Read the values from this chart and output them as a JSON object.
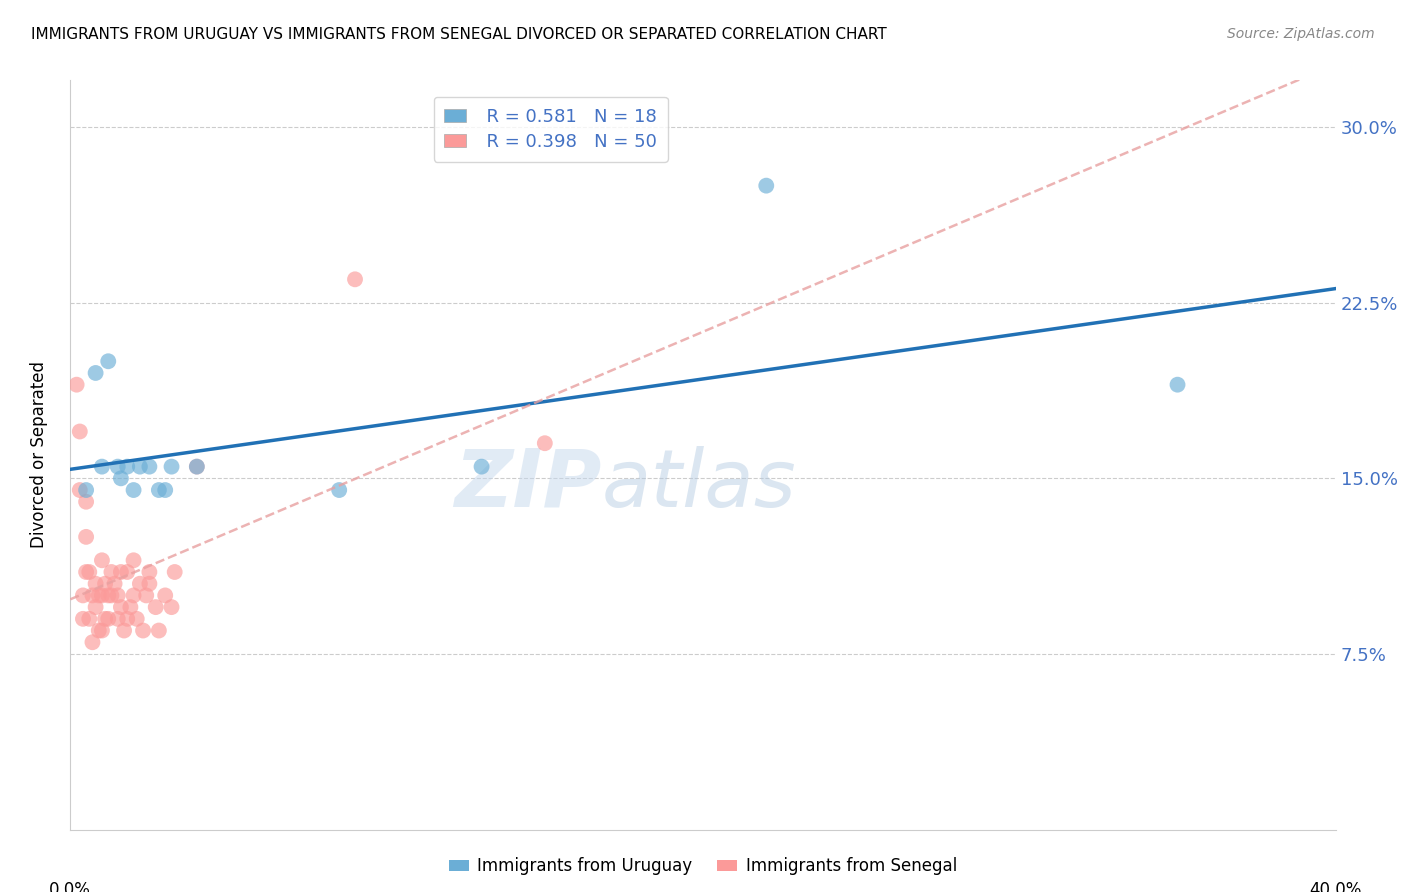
{
  "title": "IMMIGRANTS FROM URUGUAY VS IMMIGRANTS FROM SENEGAL DIVORCED OR SEPARATED CORRELATION CHART",
  "source": "Source: ZipAtlas.com",
  "ylabel": "Divorced or Separated",
  "yticks": [
    0.0,
    0.075,
    0.15,
    0.225,
    0.3
  ],
  "ytick_labels": [
    "",
    "7.5%",
    "15.0%",
    "22.5%",
    "30.0%"
  ],
  "xticks": [
    0.0,
    0.05,
    0.1,
    0.15,
    0.2,
    0.25,
    0.3,
    0.35,
    0.4
  ],
  "xlim": [
    0.0,
    0.4
  ],
  "ylim": [
    0.0,
    0.32
  ],
  "uruguay_R": 0.581,
  "uruguay_N": 18,
  "senegal_R": 0.398,
  "senegal_N": 50,
  "uruguay_color": "#6baed6",
  "senegal_color": "#fb9a99",
  "uruguay_line_color": "#2171b5",
  "senegal_line_color": "#e8a0a0",
  "watermark_part1": "ZIP",
  "watermark_part2": "atlas",
  "uruguay_points_x": [
    0.005,
    0.008,
    0.01,
    0.012,
    0.015,
    0.016,
    0.018,
    0.02,
    0.022,
    0.025,
    0.028,
    0.03,
    0.032,
    0.04,
    0.085,
    0.13,
    0.22,
    0.35
  ],
  "uruguay_points_y": [
    0.145,
    0.195,
    0.155,
    0.2,
    0.155,
    0.15,
    0.155,
    0.145,
    0.155,
    0.155,
    0.145,
    0.145,
    0.155,
    0.155,
    0.145,
    0.155,
    0.275,
    0.19
  ],
  "senegal_points_x": [
    0.002,
    0.003,
    0.003,
    0.004,
    0.004,
    0.005,
    0.005,
    0.005,
    0.006,
    0.006,
    0.007,
    0.007,
    0.008,
    0.008,
    0.009,
    0.009,
    0.01,
    0.01,
    0.01,
    0.011,
    0.011,
    0.012,
    0.012,
    0.013,
    0.013,
    0.014,
    0.015,
    0.015,
    0.016,
    0.016,
    0.017,
    0.018,
    0.018,
    0.019,
    0.02,
    0.02,
    0.021,
    0.022,
    0.023,
    0.024,
    0.025,
    0.025,
    0.027,
    0.028,
    0.03,
    0.032,
    0.033,
    0.04,
    0.09,
    0.15
  ],
  "senegal_points_y": [
    0.19,
    0.145,
    0.17,
    0.09,
    0.1,
    0.11,
    0.125,
    0.14,
    0.09,
    0.11,
    0.08,
    0.1,
    0.095,
    0.105,
    0.085,
    0.1,
    0.085,
    0.1,
    0.115,
    0.09,
    0.105,
    0.09,
    0.1,
    0.1,
    0.11,
    0.105,
    0.09,
    0.1,
    0.095,
    0.11,
    0.085,
    0.09,
    0.11,
    0.095,
    0.1,
    0.115,
    0.09,
    0.105,
    0.085,
    0.1,
    0.11,
    0.105,
    0.095,
    0.085,
    0.1,
    0.095,
    0.11,
    0.155,
    0.235,
    0.165
  ]
}
